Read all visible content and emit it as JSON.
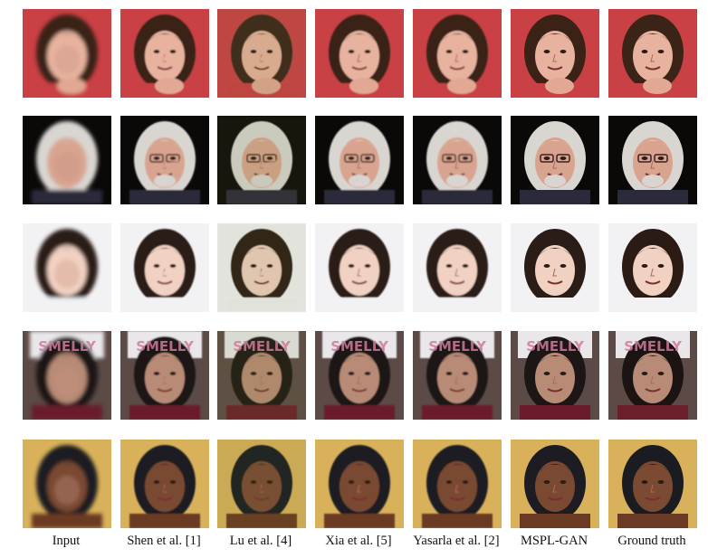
{
  "columns": [
    {
      "label": "Input",
      "blur": 2.2,
      "method": "input"
    },
    {
      "label": "Shen et al. [1]",
      "blur": 0.9,
      "method": "shen"
    },
    {
      "label": "Lu et al. [4]",
      "blur": 0.6,
      "method": "lu"
    },
    {
      "label": "Xia et al. [5]",
      "blur": 0.8,
      "method": "xia"
    },
    {
      "label": "Yasarla et al. [2]",
      "blur": 0.7,
      "method": "yasarla"
    },
    {
      "label": "MSPL-GAN",
      "blur": 0.3,
      "method": "mspl"
    },
    {
      "label": "Ground truth",
      "blur": 0.0,
      "method": "gt"
    }
  ],
  "rows": [
    {
      "name": "girl-red-background",
      "bg": "#c94045",
      "hair": "#3a2418",
      "skin": "#e7b29e",
      "cloth": "#c94045",
      "prop": "hand"
    },
    {
      "name": "older-man-glasses",
      "bg": "#0b0808",
      "hair": "#d9d6d2",
      "skin": "#d8a48f",
      "cloth": "#2a2a3a",
      "prop": "glasses"
    },
    {
      "name": "young-woman-white-background",
      "bg": "#f2f2f4",
      "hair": "#2b1b14",
      "skin": "#f1d1c2",
      "cloth": "#f2f2f4",
      "prop": "none"
    },
    {
      "name": "child-holding-sign",
      "bg": "#5b4a45",
      "hair": "#1c1412",
      "skin": "#b88b76",
      "cloth": "#6b1f2b",
      "prop": "sign"
    },
    {
      "name": "woman-curly-hair",
      "bg": "#d8b15a",
      "hair": "#1a1c22",
      "skin": "#7a4a33",
      "cloth": "#6a3a24",
      "prop": "none"
    }
  ],
  "sign_text": "SMELLY"
}
